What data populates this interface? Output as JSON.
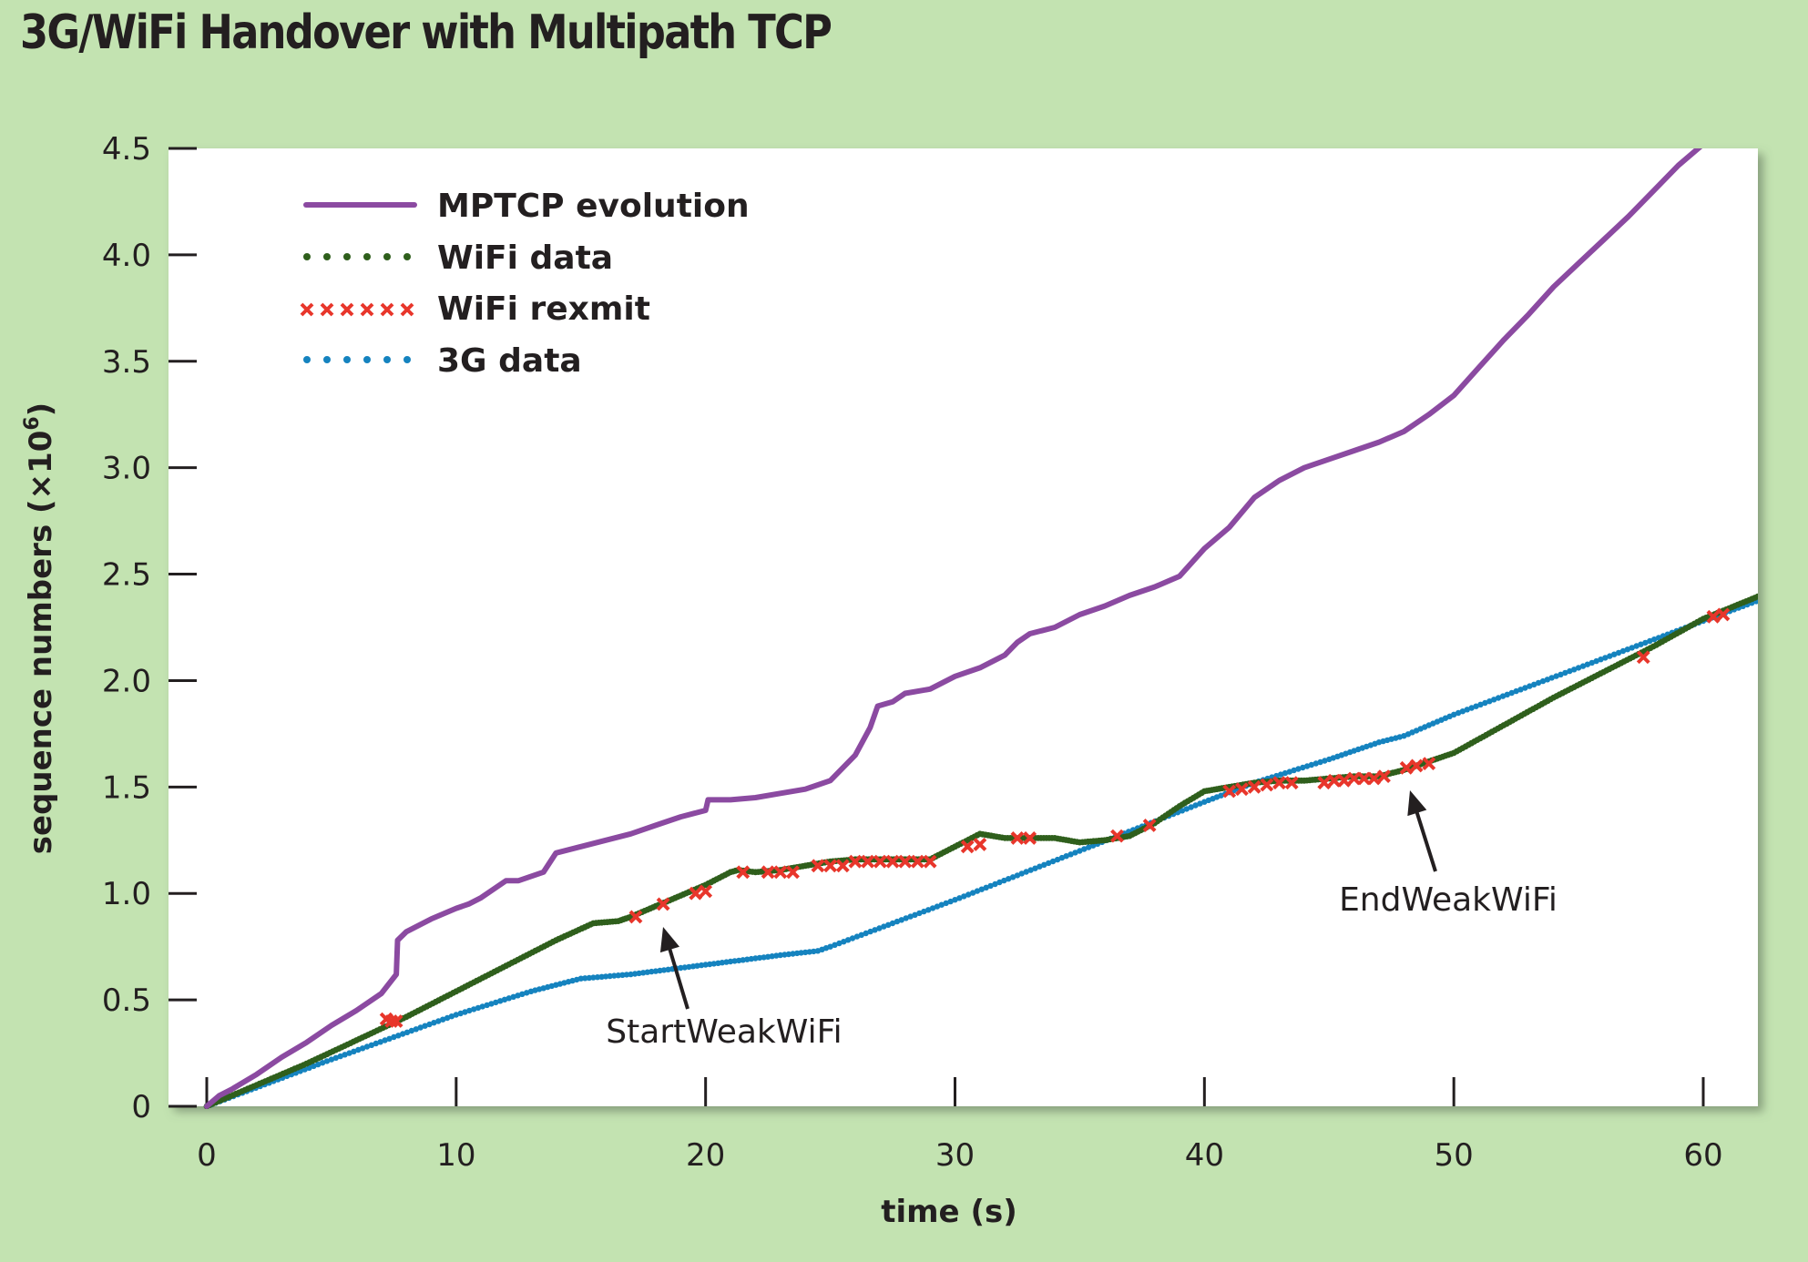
{
  "chart_data": {
    "type": "line",
    "title": "3G/WiFi Handover with Multipath TCP",
    "xlabel": "time (s)",
    "ylabel": "sequence numbers (×10",
    "ylabel_sup": "6",
    "ylabel_close": ")",
    "xlim": [
      0,
      62.3
    ],
    "ylim": [
      0,
      4.5
    ],
    "xticks": [
      0,
      10,
      20,
      30,
      40,
      50,
      60
    ],
    "xtick_labels": [
      "0",
      "10",
      "20",
      "30",
      "40",
      "50",
      "60"
    ],
    "yticks": [
      0,
      0.5,
      1.0,
      1.5,
      2.0,
      2.5,
      3.0,
      3.5,
      4.0,
      4.5
    ],
    "ytick_labels": [
      "0",
      "0.5",
      "1.0",
      "1.5",
      "2.0",
      "2.5",
      "3.0",
      "3.5",
      "4.0",
      "4.5"
    ],
    "legend_position": "top-left",
    "grid": false,
    "series": [
      {
        "name": "MPTCP evolution",
        "style": "line",
        "color": "#8b4aa1",
        "x": [
          0,
          0.5,
          1,
          2,
          3,
          4,
          5,
          6,
          7,
          7.6,
          7.65,
          8,
          9,
          10,
          10.5,
          11,
          12,
          12.5,
          13.5,
          14,
          15,
          16,
          17,
          18,
          19,
          20,
          20.1,
          21,
          22,
          23,
          24,
          25,
          26,
          26.6,
          26.9,
          27.5,
          28,
          29,
          30,
          31,
          32,
          32.5,
          33,
          34,
          35,
          36,
          37,
          38,
          39,
          40,
          41,
          42,
          43,
          44,
          45,
          46,
          47,
          48,
          49,
          50,
          51,
          52,
          53,
          54,
          55,
          56,
          57,
          58,
          59,
          60,
          61,
          62.3
        ],
        "y": [
          0,
          0.05,
          0.08,
          0.15,
          0.23,
          0.3,
          0.38,
          0.45,
          0.53,
          0.62,
          0.78,
          0.82,
          0.88,
          0.93,
          0.95,
          0.98,
          1.06,
          1.06,
          1.1,
          1.19,
          1.22,
          1.25,
          1.28,
          1.32,
          1.36,
          1.39,
          1.44,
          1.44,
          1.45,
          1.47,
          1.49,
          1.53,
          1.65,
          1.78,
          1.88,
          1.9,
          1.94,
          1.96,
          2.02,
          2.06,
          2.12,
          2.18,
          2.22,
          2.25,
          2.31,
          2.35,
          2.4,
          2.44,
          2.49,
          2.62,
          2.72,
          2.86,
          2.94,
          3.0,
          3.04,
          3.08,
          3.12,
          3.17,
          3.25,
          3.34,
          3.47,
          3.6,
          3.72,
          3.85,
          3.96,
          4.07,
          4.18,
          4.3,
          4.42,
          4.52,
          4.62,
          4.72
        ]
      },
      {
        "name": "WiFi data",
        "style": "dotted-green",
        "color": "#2f5f1c",
        "x": [
          0,
          2,
          4,
          6,
          8,
          10,
          12,
          14,
          15.5,
          16.5,
          17,
          18,
          19,
          20,
          21,
          21.3,
          22,
          23,
          24,
          25,
          26,
          27,
          28,
          29,
          30,
          31,
          32,
          33,
          34,
          35,
          36,
          37,
          38,
          39,
          40,
          40.5,
          41,
          42,
          43,
          44,
          45,
          46,
          47,
          48,
          49,
          50,
          52,
          54,
          56,
          58,
          60,
          62.3
        ],
        "y": [
          0,
          0.1,
          0.2,
          0.31,
          0.42,
          0.54,
          0.66,
          0.78,
          0.86,
          0.87,
          0.89,
          0.94,
          0.99,
          1.04,
          1.1,
          1.11,
          1.1,
          1.11,
          1.13,
          1.15,
          1.16,
          1.16,
          1.16,
          1.16,
          1.22,
          1.28,
          1.26,
          1.26,
          1.26,
          1.24,
          1.25,
          1.27,
          1.33,
          1.41,
          1.48,
          1.49,
          1.5,
          1.52,
          1.53,
          1.53,
          1.54,
          1.55,
          1.55,
          1.58,
          1.62,
          1.66,
          1.79,
          1.92,
          2.04,
          2.16,
          2.29,
          2.4
        ]
      },
      {
        "name": "WiFi rexmit",
        "style": "cross",
        "color": "#e8362b",
        "x": [
          7.2,
          7.4,
          7.6,
          17.2,
          18.3,
          19.6,
          20,
          21.5,
          22.5,
          23,
          23.5,
          24.5,
          25,
          25.5,
          26,
          26.5,
          27,
          27.5,
          28,
          28.5,
          29,
          30.5,
          31,
          32.5,
          33,
          36.5,
          37.8,
          41,
          41.5,
          42,
          42.5,
          43,
          43.5,
          44.8,
          45.2,
          45.6,
          46,
          46.4,
          46.8,
          47.2,
          48.1,
          48.5,
          49,
          57.6,
          60.4,
          60.8
        ],
        "y": [
          0.41,
          0.4,
          0.4,
          0.89,
          0.95,
          1.0,
          1.01,
          1.1,
          1.1,
          1.1,
          1.1,
          1.13,
          1.13,
          1.13,
          1.15,
          1.15,
          1.15,
          1.15,
          1.15,
          1.15,
          1.15,
          1.22,
          1.23,
          1.26,
          1.26,
          1.27,
          1.32,
          1.48,
          1.49,
          1.5,
          1.51,
          1.52,
          1.52,
          1.52,
          1.53,
          1.53,
          1.54,
          1.54,
          1.54,
          1.55,
          1.59,
          1.6,
          1.61,
          2.11,
          2.3,
          2.31
        ]
      },
      {
        "name": "3G data",
        "style": "dotted-blue",
        "color": "#1583bf",
        "x": [
          0,
          5,
          10,
          13,
          15,
          17,
          19,
          21,
          23,
          24.5,
          25,
          30,
          35,
          40,
          42,
          45,
          47,
          48,
          50,
          55,
          60,
          62.3
        ],
        "y": [
          0,
          0.22,
          0.43,
          0.54,
          0.6,
          0.62,
          0.65,
          0.68,
          0.71,
          0.73,
          0.75,
          0.97,
          1.2,
          1.43,
          1.52,
          1.63,
          1.71,
          1.74,
          1.84,
          2.06,
          2.28,
          2.38
        ]
      }
    ],
    "annotations": [
      {
        "text": "StartWeakWiFi",
        "x": 18.3,
        "y": 0.84
      },
      {
        "text": "EndWeakWiFi",
        "x": 48.1,
        "y": 1.47
      }
    ]
  }
}
